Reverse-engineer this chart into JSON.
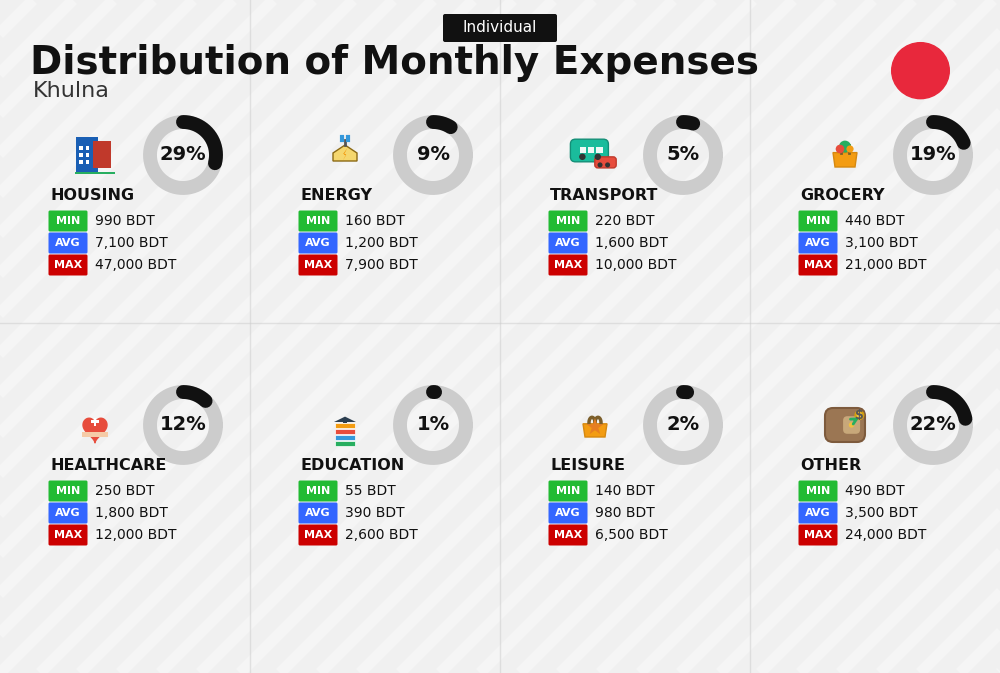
{
  "title": "Distribution of Monthly Expenses",
  "subtitle": "Individual",
  "city": "Khulna",
  "background_color": "#f0f0f0",
  "categories": [
    {
      "name": "HOUSING",
      "pct": 29,
      "min": "990 BDT",
      "avg": "7,100 BDT",
      "max": "47,000 BDT",
      "row": 0,
      "col": 0,
      "icon": "housing"
    },
    {
      "name": "ENERGY",
      "pct": 9,
      "min": "160 BDT",
      "avg": "1,200 BDT",
      "max": "7,900 BDT",
      "row": 0,
      "col": 1,
      "icon": "energy"
    },
    {
      "name": "TRANSPORT",
      "pct": 5,
      "min": "220 BDT",
      "avg": "1,600 BDT",
      "max": "10,000 BDT",
      "row": 0,
      "col": 2,
      "icon": "transport"
    },
    {
      "name": "GROCERY",
      "pct": 19,
      "min": "440 BDT",
      "avg": "3,100 BDT",
      "max": "21,000 BDT",
      "row": 0,
      "col": 3,
      "icon": "grocery"
    },
    {
      "name": "HEALTHCARE",
      "pct": 12,
      "min": "250 BDT",
      "avg": "1,800 BDT",
      "max": "12,000 BDT",
      "row": 1,
      "col": 0,
      "icon": "healthcare"
    },
    {
      "name": "EDUCATION",
      "pct": 1,
      "min": "55 BDT",
      "avg": "390 BDT",
      "max": "2,600 BDT",
      "row": 1,
      "col": 1,
      "icon": "education"
    },
    {
      "name": "LEISURE",
      "pct": 2,
      "min": "140 BDT",
      "avg": "980 BDT",
      "max": "6,500 BDT",
      "row": 1,
      "col": 2,
      "icon": "leisure"
    },
    {
      "name": "OTHER",
      "pct": 22,
      "min": "490 BDT",
      "avg": "3,500 BDT",
      "max": "24,000 BDT",
      "row": 1,
      "col": 3,
      "icon": "other"
    }
  ],
  "min_color": "#22bb33",
  "avg_color": "#3366ff",
  "max_color": "#cc0000",
  "label_text_color": "#ffffff",
  "value_text_color": "#111111",
  "category_text_color": "#111111",
  "donut_active_color": "#111111",
  "donut_inactive_color": "#cccccc",
  "title_fontsize": 28,
  "subtitle_fontsize": 11,
  "city_fontsize": 16,
  "category_fontsize": 11,
  "badge_fontsize": 9,
  "value_fontsize": 11,
  "pct_fontsize": 16
}
